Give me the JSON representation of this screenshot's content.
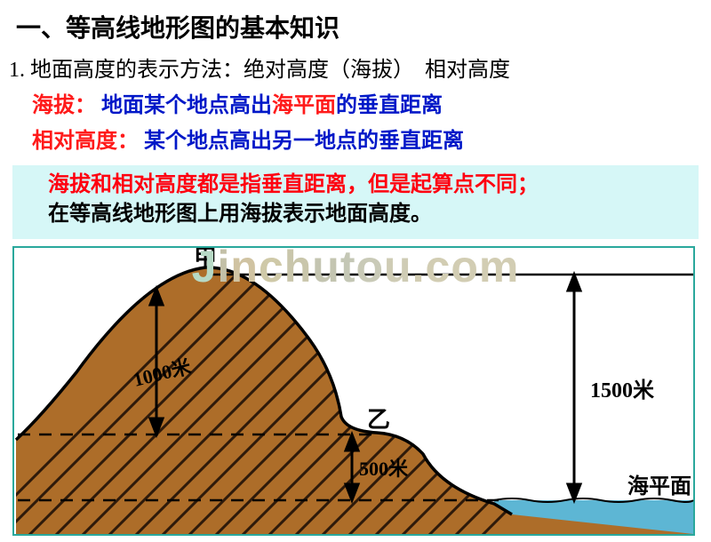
{
  "heading": "一、等高线地形图的基本知识",
  "subheading": "1. 地面高度的表示方法：绝对高度（海拔）　相对高度",
  "definition1": {
    "term": "海拔：",
    "text_a": "地面某个地点高出",
    "text_highlight": "海平面",
    "text_b": "的垂直距离"
  },
  "definition2": {
    "term": "相对高度：",
    "text": "某个地点高出另一地点的垂直距离"
  },
  "note": {
    "line1": "海拔和相对高度都是指垂直距离，但是起算点不同；",
    "line2": "在等高线地形图上用海拔表示地面高度。"
  },
  "diagram": {
    "label_peak": "甲",
    "label_hill": "乙",
    "label_sea": "海平面",
    "height_peak_rel": "1000米",
    "height_hill_abs": "500米",
    "height_peak_abs": "1500米",
    "colors": {
      "terrain_fill": "#ad6d29",
      "terrain_hatch": "#2e1a0a",
      "outline": "#000000",
      "water": "#5db6d4",
      "frame": "#2aa89c",
      "note_bg": "#d6f7f7"
    },
    "fontsize_labels": 26,
    "fontsize_values": 22
  },
  "watermark": {
    "text": "Jinchutou.com",
    "chars": [
      "J",
      "i",
      "n",
      "c",
      "h",
      "u",
      "t",
      "o",
      "u",
      ".",
      "c",
      "o",
      "m"
    ],
    "colors": [
      "#b7d9c5",
      "#c3c0a7",
      "#d0c3a2",
      "#cfc9a8",
      "#c9c6ab",
      "#c4c5b1",
      "#c4c7b5",
      "#c9cab7",
      "#cfccb5",
      "#d2cdb3",
      "#d2cdb3",
      "#d2cdb3",
      "#d2cdb3"
    ],
    "fontsize": 50
  }
}
